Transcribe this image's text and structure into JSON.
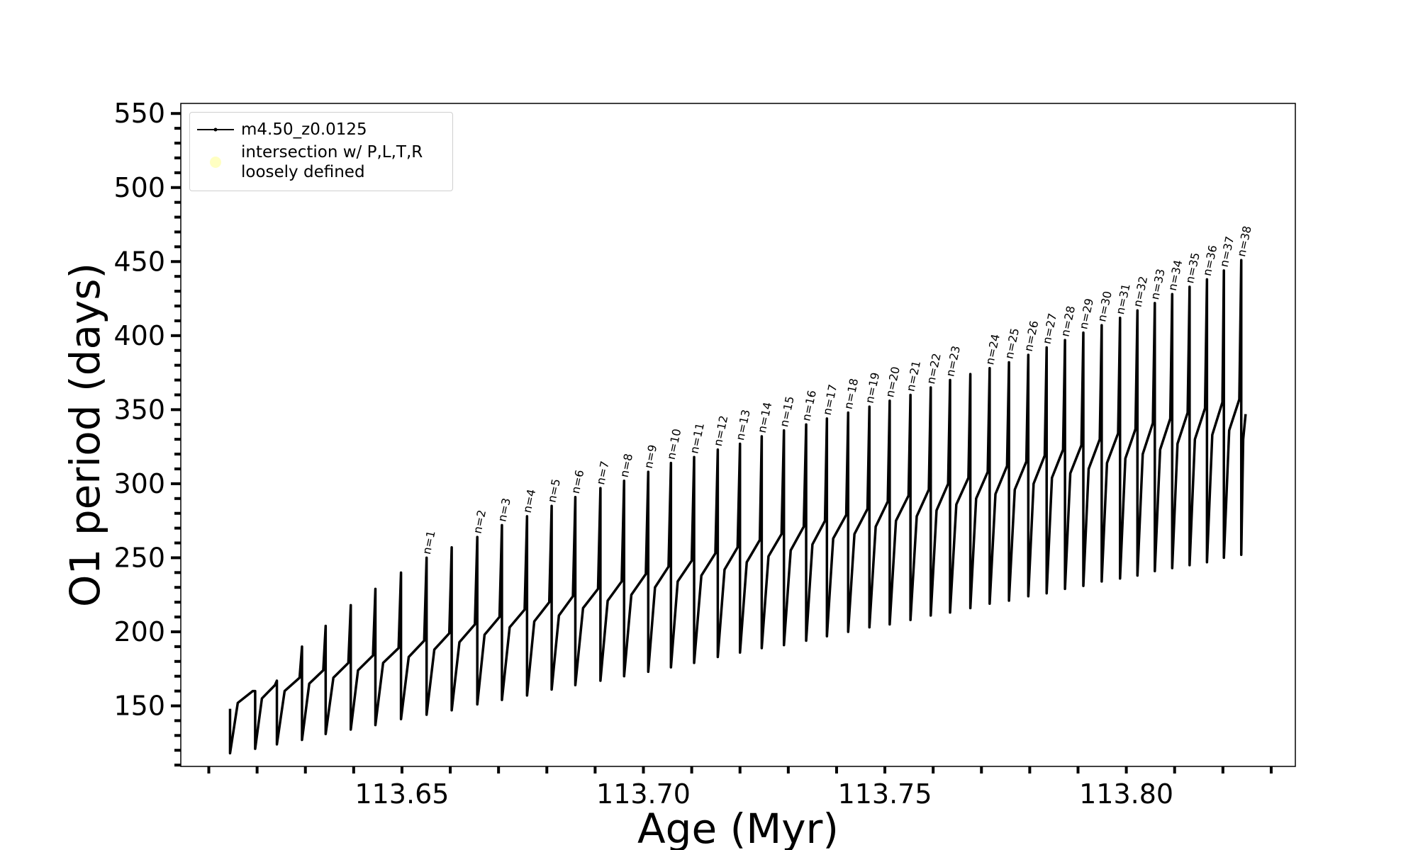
{
  "chart_data": {
    "type": "line",
    "xlabel": "Age (Myr)",
    "ylabel": "O1 period (days)",
    "xlim": [
      113.6042,
      113.835
    ],
    "ylim": [
      109.1,
      556.8
    ],
    "xticks": [
      {
        "value": 113.65,
        "label": "113.65"
      },
      {
        "value": 113.7,
        "label": "113.70"
      },
      {
        "value": 113.75,
        "label": "113.75"
      },
      {
        "value": 113.8,
        "label": "113.80"
      }
    ],
    "xminorticks": [
      113.61,
      113.62,
      113.63,
      113.64,
      113.66,
      113.67,
      113.68,
      113.69,
      113.71,
      113.72,
      113.73,
      113.74,
      113.76,
      113.77,
      113.78,
      113.79,
      113.81,
      113.82,
      113.83
    ],
    "yticks": [
      150,
      200,
      250,
      300,
      350,
      400,
      450,
      500,
      550
    ],
    "yminorticks": [
      110,
      120,
      130,
      140,
      160,
      170,
      180,
      190,
      210,
      220,
      230,
      240,
      260,
      270,
      280,
      290,
      310,
      320,
      330,
      340,
      360,
      370,
      380,
      390,
      410,
      420,
      430,
      440,
      460,
      470,
      480,
      490,
      510,
      520,
      530,
      540
    ],
    "legend": "upper left",
    "series": [
      {
        "name": "m4.50_z0.0125",
        "color": "#000000",
        "x": [
          113.6144,
          113.6144,
          113.616,
          113.6191,
          113.6196,
          113.6196,
          113.621,
          113.6237,
          113.6241,
          113.6241,
          113.6257,
          113.6288,
          113.6293,
          113.6293,
          113.6308,
          113.6337,
          113.6342,
          113.6342,
          113.6358,
          113.6389,
          113.6394,
          113.6394,
          113.6409,
          113.644,
          113.6445,
          113.6445,
          113.6461,
          113.6493,
          113.6498,
          113.6498,
          113.6514,
          113.6546,
          113.6551,
          113.6551,
          113.6567,
          113.6598,
          113.6603,
          113.6603,
          113.6619,
          113.6651,
          113.6656,
          113.6656,
          113.6671,
          113.6702,
          113.6707,
          113.6707,
          113.6723,
          113.6754,
          113.6759,
          113.6759,
          113.6774,
          113.6805,
          113.681,
          113.681,
          113.6825,
          113.6854,
          113.6859,
          113.6859,
          113.6875,
          113.6906,
          113.6911,
          113.6911,
          113.6926,
          113.6955,
          113.696,
          113.696,
          113.6975,
          113.7005,
          113.701,
          113.701,
          113.7024,
          113.7052,
          113.7057,
          113.7057,
          113.7071,
          113.71,
          113.7105,
          113.7105,
          113.712,
          113.7149,
          113.7154,
          113.7154,
          113.7168,
          113.7195,
          113.72,
          113.72,
          113.7214,
          113.7241,
          113.7245,
          113.7245,
          113.7259,
          113.7286,
          113.7291,
          113.7291,
          113.7305,
          113.7332,
          113.7337,
          113.7337,
          113.735,
          113.7376,
          113.738,
          113.738,
          113.7393,
          113.742,
          113.7424,
          113.7424,
          113.7437,
          113.7464,
          113.7468,
          113.7468,
          113.7481,
          113.7506,
          113.751,
          113.751,
          113.7523,
          113.7549,
          113.7553,
          113.7553,
          113.7566,
          113.7591,
          113.7595,
          113.7595,
          113.7607,
          113.7631,
          113.7635,
          113.7635,
          113.7648,
          113.7673,
          113.7677,
          113.7677,
          113.7689,
          113.7713,
          113.7717,
          113.7717,
          113.7729,
          113.7753,
          113.7757,
          113.7757,
          113.7769,
          113.7793,
          113.7797,
          113.7797,
          113.7808,
          113.7831,
          113.7835,
          113.7835,
          113.7846,
          113.7869,
          113.7873,
          113.7873,
          113.7884,
          113.7907,
          113.7911,
          113.7911,
          113.7922,
          113.7945,
          113.7949,
          113.7949,
          113.796,
          113.7983,
          113.7987,
          113.7987,
          113.7998,
          113.8019,
          113.8023,
          113.8023,
          113.8034,
          113.8055,
          113.8059,
          113.8059,
          113.807,
          113.8091,
          113.8095,
          113.8095,
          113.8106,
          113.8127,
          113.8131,
          113.8131,
          113.8142,
          113.8163,
          113.8167,
          113.8167,
          113.8178,
          113.8199,
          113.8202,
          113.8202,
          113.8213,
          113.8234,
          113.8238,
          113.8238,
          113.8242,
          113.8247
        ],
        "values": [
          148,
          118,
          152,
          160,
          160,
          121,
          155,
          164,
          167,
          124,
          160,
          169,
          190,
          127,
          165,
          174,
          204,
          131,
          169,
          179,
          218,
          134,
          174,
          184,
          229,
          137,
          179,
          189,
          240,
          141,
          183,
          194,
          250,
          144,
          188,
          199,
          257,
          147,
          193,
          205,
          264,
          151,
          198,
          210,
          272,
          154,
          203,
          215,
          278,
          157,
          207,
          220,
          285,
          161,
          211,
          224,
          291,
          164,
          216,
          229,
          297,
          167,
          221,
          234,
          302,
          170,
          225,
          239,
          308,
          173,
          230,
          244,
          314,
          176,
          234,
          248,
          318,
          179,
          238,
          253,
          323,
          183,
          242,
          257,
          327,
          186,
          247,
          262,
          332,
          189,
          251,
          266,
          336,
          191,
          255,
          271,
          340,
          194,
          259,
          275,
          344,
          197,
          263,
          279,
          348,
          200,
          266,
          283,
          352,
          203,
          271,
          288,
          356,
          205,
          275,
          292,
          360,
          208,
          278,
          296,
          365,
          211,
          282,
          300,
          370,
          213,
          286,
          304,
          374,
          216,
          290,
          308,
          378,
          219,
          293,
          312,
          382,
          221,
          296,
          315,
          387,
          224,
          300,
          319,
          392,
          226,
          304,
          323,
          397,
          229,
          307,
          326,
          402,
          231,
          310,
          330,
          407,
          234,
          314,
          334,
          412,
          236,
          317,
          337,
          417,
          238,
          320,
          341,
          422,
          241,
          323,
          344,
          428,
          243,
          327,
          348,
          433,
          245,
          330,
          351,
          438,
          247,
          333,
          355,
          444,
          250,
          336,
          357,
          451,
          252,
          330,
          347
        ]
      },
      {
        "name": "intersection w/ P,L,T,R\nloosely defined",
        "color": "#ffffb3",
        "type": "scatter",
        "x": [],
        "values": []
      }
    ],
    "annotations": [
      {
        "text": "n=1",
        "x": 113.6551,
        "y": 250
      },
      {
        "text": "n=2",
        "x": 113.6656,
        "y": 264
      },
      {
        "text": "n=3",
        "x": 113.6707,
        "y": 272
      },
      {
        "text": "n=4",
        "x": 113.6759,
        "y": 278
      },
      {
        "text": "n=5",
        "x": 113.681,
        "y": 285
      },
      {
        "text": "n=6",
        "x": 113.6859,
        "y": 291
      },
      {
        "text": "n=7",
        "x": 113.6911,
        "y": 297
      },
      {
        "text": "n=8",
        "x": 113.696,
        "y": 302
      },
      {
        "text": "n=9",
        "x": 113.701,
        "y": 308
      },
      {
        "text": "n=10",
        "x": 113.7057,
        "y": 314
      },
      {
        "text": "n=11",
        "x": 113.7105,
        "y": 318
      },
      {
        "text": "n=12",
        "x": 113.7154,
        "y": 323
      },
      {
        "text": "n=13",
        "x": 113.72,
        "y": 327
      },
      {
        "text": "n=14",
        "x": 113.7245,
        "y": 332
      },
      {
        "text": "n=15",
        "x": 113.7291,
        "y": 336
      },
      {
        "text": "n=16",
        "x": 113.7337,
        "y": 340
      },
      {
        "text": "n=17",
        "x": 113.738,
        "y": 344
      },
      {
        "text": "n=18",
        "x": 113.7424,
        "y": 348
      },
      {
        "text": "n=19",
        "x": 113.7468,
        "y": 352
      },
      {
        "text": "n=20",
        "x": 113.751,
        "y": 356
      },
      {
        "text": "n=21",
        "x": 113.7553,
        "y": 360
      },
      {
        "text": "n=22",
        "x": 113.7595,
        "y": 365
      },
      {
        "text": "n=23",
        "x": 113.7635,
        "y": 370
      },
      {
        "text": "n=24",
        "x": 113.7717,
        "y": 378
      },
      {
        "text": "n=25",
        "x": 113.7757,
        "y": 382
      },
      {
        "text": "n=26",
        "x": 113.7797,
        "y": 387
      },
      {
        "text": "n=27",
        "x": 113.7835,
        "y": 392
      },
      {
        "text": "n=28",
        "x": 113.7873,
        "y": 397
      },
      {
        "text": "n=29",
        "x": 113.7911,
        "y": 402
      },
      {
        "text": "n=30",
        "x": 113.7949,
        "y": 407
      },
      {
        "text": "n=31",
        "x": 113.7987,
        "y": 412
      },
      {
        "text": "n=32",
        "x": 113.8023,
        "y": 417
      },
      {
        "text": "n=33",
        "x": 113.8059,
        "y": 422
      },
      {
        "text": "n=34",
        "x": 113.8095,
        "y": 428
      },
      {
        "text": "n=35",
        "x": 113.8131,
        "y": 433
      },
      {
        "text": "n=36",
        "x": 113.8167,
        "y": 438
      },
      {
        "text": "n=37",
        "x": 113.8202,
        "y": 444
      },
      {
        "text": "n=38",
        "x": 113.8238,
        "y": 451
      }
    ]
  }
}
